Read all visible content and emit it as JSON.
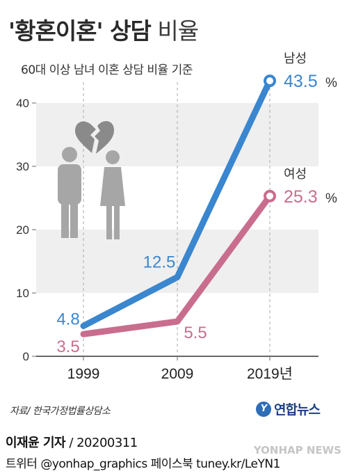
{
  "header": {
    "title_main": "'황혼이혼' 상담",
    "title_suffix": "비율",
    "subtitle": "60대 이상 남녀 이혼 상담 비율 기준"
  },
  "chart_data": {
    "type": "line",
    "title": "'황혼이혼' 상담 비율",
    "subtitle": "60대 이상 남녀 이혼 상담 비율 기준",
    "x": [
      "1999",
      "2009",
      "2019년"
    ],
    "series": [
      {
        "name": "남성",
        "values": [
          4.8,
          12.5,
          43.5
        ],
        "color": "#3a86cf",
        "value_labels": [
          "4.8",
          "12.5",
          "43.5"
        ]
      },
      {
        "name": "여성",
        "values": [
          3.5,
          5.5,
          25.3
        ],
        "color": "#c96d8e",
        "value_labels": [
          "3.5",
          "5.5",
          "25.3"
        ]
      }
    ],
    "percent_sign": "%",
    "yticks": [
      "0",
      "10",
      "20",
      "30",
      "40"
    ],
    "ylim": [
      0,
      45
    ],
    "grid": "alternating-bands",
    "legend": "inline-end-labels"
  },
  "icons": {
    "illustration": "broken-heart-couple-icon"
  },
  "footer": {
    "source": "자료/ 한국가정법률상담소",
    "brand": "연합뉴스",
    "brand_logo_letter": "Y",
    "reporter": "이재윤 기자",
    "date": "/ 20200311",
    "social": "트위터 @yonhap_graphics  페이스북 tuney.kr/LeYN1",
    "watermark": "YONHAP NEWS"
  }
}
